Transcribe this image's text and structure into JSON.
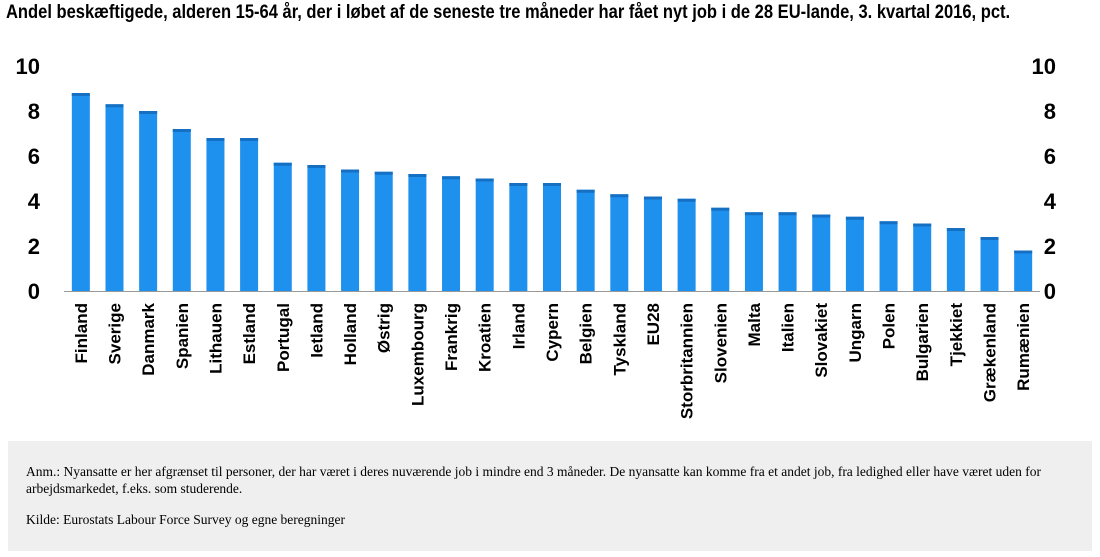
{
  "chart_data": {
    "type": "bar",
    "title": "Andel beskæftigede, alderen 15-64 år, der i løbet af de seneste tre måneder har fået nyt job i de 28 EU-lande, 3. kvartal 2016, pct.",
    "categories": [
      "Finland",
      "Sverige",
      "Danmark",
      "Spanien",
      "Lithauen",
      "Estland",
      "Portugal",
      "Ietland",
      "Holland",
      "Østrig",
      "Luxembourg",
      "Frankrig",
      "Kroatien",
      "Irland",
      "Cypern",
      "Belgien",
      "Tyskland",
      "EU28",
      "Storbritannien",
      "Slovenien",
      "Malta",
      "Italien",
      "Slovakiet",
      "Ungarn",
      "Polen",
      "Bulgarien",
      "Tjekkiet",
      "Grækenland",
      "Rumænien"
    ],
    "values": [
      8.8,
      8.3,
      8.0,
      7.2,
      6.8,
      6.8,
      5.7,
      5.6,
      5.4,
      5.3,
      5.2,
      5.1,
      5.0,
      4.8,
      4.8,
      4.5,
      4.3,
      4.2,
      4.1,
      3.7,
      3.5,
      3.5,
      3.4,
      3.3,
      3.1,
      3.0,
      2.8,
      2.4,
      1.8
    ],
    "yticks": [
      "0",
      "2",
      "4",
      "6",
      "8",
      "10"
    ],
    "ylim": [
      0,
      10
    ],
    "grid": false,
    "color": "#1e90ee",
    "color_dark": "#1570c4"
  },
  "notes": {
    "note": "Anm.: Nyansatte er her afgrænset til personer, der har været i deres nuværende job i mindre end 3 måneder. De nyansatte kan komme fra et andet job, fra ledighed eller have været uden for arbejdsmarkedet, f.eks. som studerende.",
    "source": "Kilde: Eurostats Labour Force Survey og egne beregninger"
  }
}
